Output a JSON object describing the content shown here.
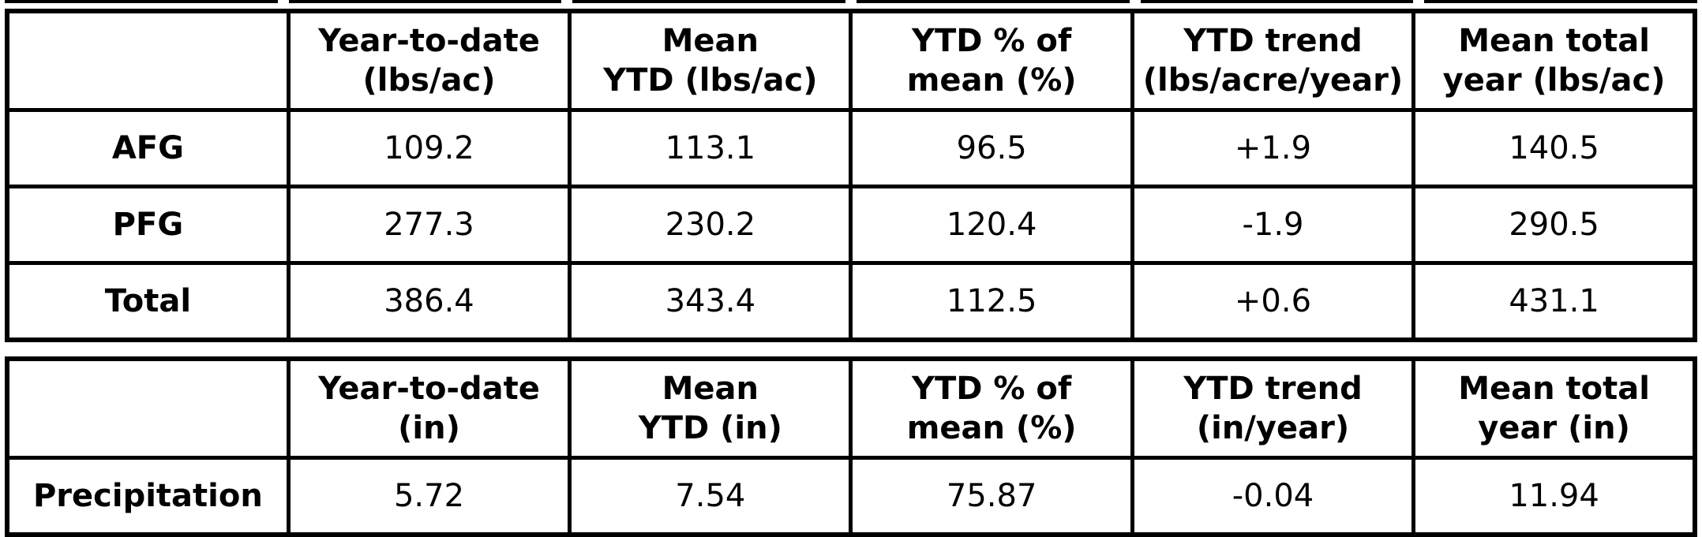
{
  "page": {
    "background": "#ffffff",
    "grid_color": "#000000",
    "text_color": "#000000"
  },
  "tables": [
    {
      "id": "forage-production",
      "headers": [
        "",
        "Year-to-date\n(lbs/ac)",
        "Mean\nYTD (lbs/ac)",
        "YTD % of\nmean (%)",
        "YTD trend\n(lbs/acre/year)",
        "Mean total\nyear (lbs/ac)"
      ],
      "rows": [
        {
          "label": "AFG",
          "values": [
            "109.2",
            "113.1",
            "96.5",
            "+1.9",
            "140.5"
          ]
        },
        {
          "label": "PFG",
          "values": [
            "277.3",
            "230.2",
            "120.4",
            "-1.9",
            "290.5"
          ]
        },
        {
          "label": "Total",
          "values": [
            "386.4",
            "343.4",
            "112.5",
            "+0.6",
            "431.1"
          ]
        }
      ]
    },
    {
      "id": "precipitation",
      "headers": [
        "",
        "Year-to-date\n(in)",
        "Mean\nYTD (in)",
        "YTD % of\nmean (%)",
        "YTD trend\n(in/year)",
        "Mean total\nyear (in)"
      ],
      "rows": [
        {
          "label": "Precipitation",
          "values": [
            "5.72",
            "7.54",
            "75.87",
            "-0.04",
            "11.94"
          ]
        }
      ]
    }
  ]
}
